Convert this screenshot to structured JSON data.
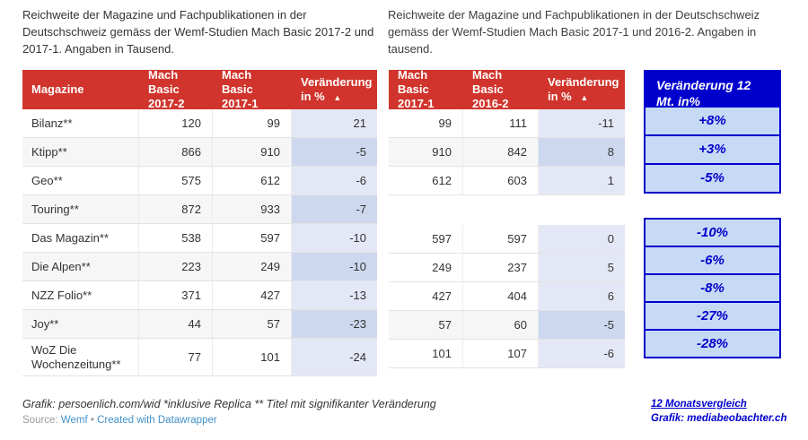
{
  "left_chart": {
    "title": "Reichweite der Magazine und Fachpublikationen in der Deutschschweiz gemäss der Wemf-Studien Mach Basic 2017-2 und 2017-1. Angaben in Tausend.",
    "columns": [
      "Magazine",
      "Mach Basic 2017-2",
      "Mach Basic 2017-1",
      "Veränderung in %"
    ],
    "sort_icon": "▲",
    "rows": [
      {
        "magazine": "Bilanz**",
        "a": "120",
        "b": "99",
        "change": "21",
        "striped": false
      },
      {
        "magazine": "Ktipp**",
        "a": "866",
        "b": "910",
        "change": "-5",
        "striped": true
      },
      {
        "magazine": "Geo**",
        "a": "575",
        "b": "612",
        "change": "-6",
        "striped": false
      },
      {
        "magazine": "Touring**",
        "a": "872",
        "b": "933",
        "change": "-7",
        "striped": true
      },
      {
        "magazine": "Das Magazin**",
        "a": "538",
        "b": "597",
        "change": "-10",
        "striped": false
      },
      {
        "magazine": "Die Alpen**",
        "a": "223",
        "b": "249",
        "change": "-10",
        "striped": true
      },
      {
        "magazine": "NZZ Folio**",
        "a": "371",
        "b": "427",
        "change": "-13",
        "striped": false
      },
      {
        "magazine": "Joy**",
        "a": "44",
        "b": "57",
        "change": "-23",
        "striped": true
      },
      {
        "magazine": "WoZ Die Wochenzeitung**",
        "a": "77",
        "b": "101",
        "change": "-24",
        "striped": false,
        "tall": true
      }
    ],
    "footer_note": "Grafik: persoenlich.com/wid *inklusive Replica ** Titel mit signifikanter Veränderung",
    "source_label": "Source:",
    "source_link": "Wemf",
    "separator": "•",
    "credit_link": "Created with Datawrapper"
  },
  "middle_chart": {
    "title": "Reichweite der Magazine und Fachpublikationen in der Deutschschweiz gemäss der Wemf-Studien Mach Basic 2017-1 und 2016-2. Angaben in tausend.",
    "columns": [
      "Mach Basic 2017-1",
      "Mach Basic 2016-2",
      "Veränderung in %"
    ],
    "sort_icon": "▲",
    "rows_top": [
      {
        "a": "99",
        "b": "111",
        "change": "-11",
        "striped": false
      },
      {
        "a": "910",
        "b": "842",
        "change": "8",
        "striped": true
      },
      {
        "a": "612",
        "b": "603",
        "change": "1",
        "striped": false
      }
    ],
    "rows_bottom": [
      {
        "a": "597",
        "b": "597",
        "change": "0",
        "striped": false
      },
      {
        "a": "249",
        "b": "237",
        "change": "5",
        "striped": false
      },
      {
        "a": "427",
        "b": "404",
        "change": "6",
        "striped": false
      },
      {
        "a": "57",
        "b": "60",
        "change": "-5",
        "striped": true
      },
      {
        "a": "101",
        "b": "107",
        "change": "-6",
        "striped": false
      }
    ]
  },
  "blue_panel": {
    "header": "Veränderung 12 Mt. in%",
    "top_values": [
      "+8%",
      "+3%",
      "-5%"
    ],
    "bottom_values": [
      "-10%",
      "-6%",
      "-8%",
      "-27%",
      "-28%"
    ]
  },
  "credit": {
    "line1": "12 Monatsvergleich",
    "line2": "Grafik: mediabeobachter.ch"
  },
  "chart_data": [
    {
      "type": "table",
      "title": "Reichweite der Magazine und Fachpublikationen in der Deutschschweiz gemäss der Wemf-Studien Mach Basic 2017-2 und 2017-1. Angaben in Tausend.",
      "columns": [
        "Magazine",
        "Mach Basic 2017-2",
        "Mach Basic 2017-1",
        "Veränderung in %"
      ],
      "rows": [
        [
          "Bilanz**",
          120,
          99,
          21
        ],
        [
          "Ktipp**",
          866,
          910,
          -5
        ],
        [
          "Geo**",
          575,
          612,
          -6
        ],
        [
          "Touring**",
          872,
          933,
          -7
        ],
        [
          "Das Magazin**",
          538,
          597,
          -10
        ],
        [
          "Die Alpen**",
          223,
          249,
          -10
        ],
        [
          "NZZ Folio**",
          371,
          427,
          -13
        ],
        [
          "Joy**",
          44,
          57,
          -23
        ],
        [
          "WoZ Die Wochenzeitung**",
          77,
          101,
          -24
        ]
      ]
    },
    {
      "type": "table",
      "title": "Reichweite der Magazine und Fachpublikationen in der Deutschschweiz gemäss der Wemf-Studien Mach Basic 2017-1 und 2016-2. Angaben in tausend.",
      "columns": [
        "Mach Basic 2017-1",
        "Mach Basic 2016-2",
        "Veränderung in %"
      ],
      "rows": [
        [
          99,
          111,
          -11
        ],
        [
          910,
          842,
          8
        ],
        [
          612,
          603,
          1
        ],
        [
          597,
          597,
          0
        ],
        [
          249,
          237,
          5
        ],
        [
          427,
          404,
          6
        ],
        [
          57,
          60,
          -5
        ],
        [
          101,
          107,
          -6
        ]
      ]
    },
    {
      "type": "table",
      "title": "Veränderung 12 Mt. in%",
      "columns": [
        "Veränderung 12 Mt. in%"
      ],
      "rows": [
        [
          "+8%"
        ],
        [
          "+3%"
        ],
        [
          "-5%"
        ],
        [
          "-10%"
        ],
        [
          "-6%"
        ],
        [
          "-8%"
        ],
        [
          "-27%"
        ],
        [
          "-28%"
        ]
      ]
    }
  ]
}
